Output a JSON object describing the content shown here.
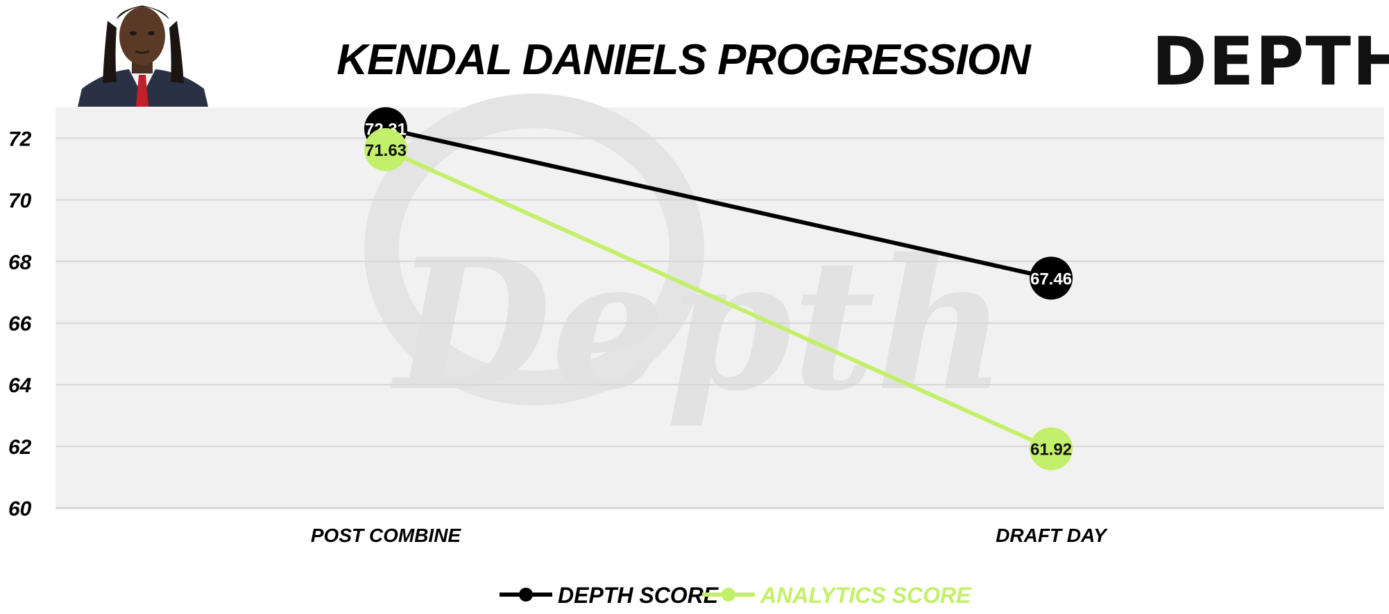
{
  "logo_text": "DEPTHU",
  "watermark_text": "Depth",
  "colors": {
    "depth": "#000000",
    "analytics": "#c3f06a",
    "plot_bg": "#f1f1f1",
    "grid": "#d6d6d6",
    "watermark": "#e2e2e2",
    "logo_dark": "#111111",
    "logo_accent": "#c3f06a"
  },
  "chart_data": {
    "type": "line",
    "title": "KENDAL DANIELS PROGRESSION",
    "categories": [
      "POST COMBINE",
      "DRAFT DAY"
    ],
    "series": [
      {
        "name": "DEPTH SCORE",
        "values": [
          72.31,
          67.46
        ],
        "labels": [
          "72.31",
          "67.46"
        ],
        "color": "#000000",
        "label_color": "#ffffff"
      },
      {
        "name": "ANALYTICS SCORE",
        "values": [
          71.63,
          61.92
        ],
        "labels": [
          "71.63",
          "61.92"
        ],
        "color": "#c3f06a",
        "label_color": "#111111"
      }
    ],
    "ylim": [
      60,
      73
    ],
    "yticks": [
      "60",
      "62",
      "64",
      "66",
      "68",
      "70",
      "72"
    ],
    "grid": true,
    "legend_position": "bottom-center",
    "xlabel": "",
    "ylabel": ""
  }
}
